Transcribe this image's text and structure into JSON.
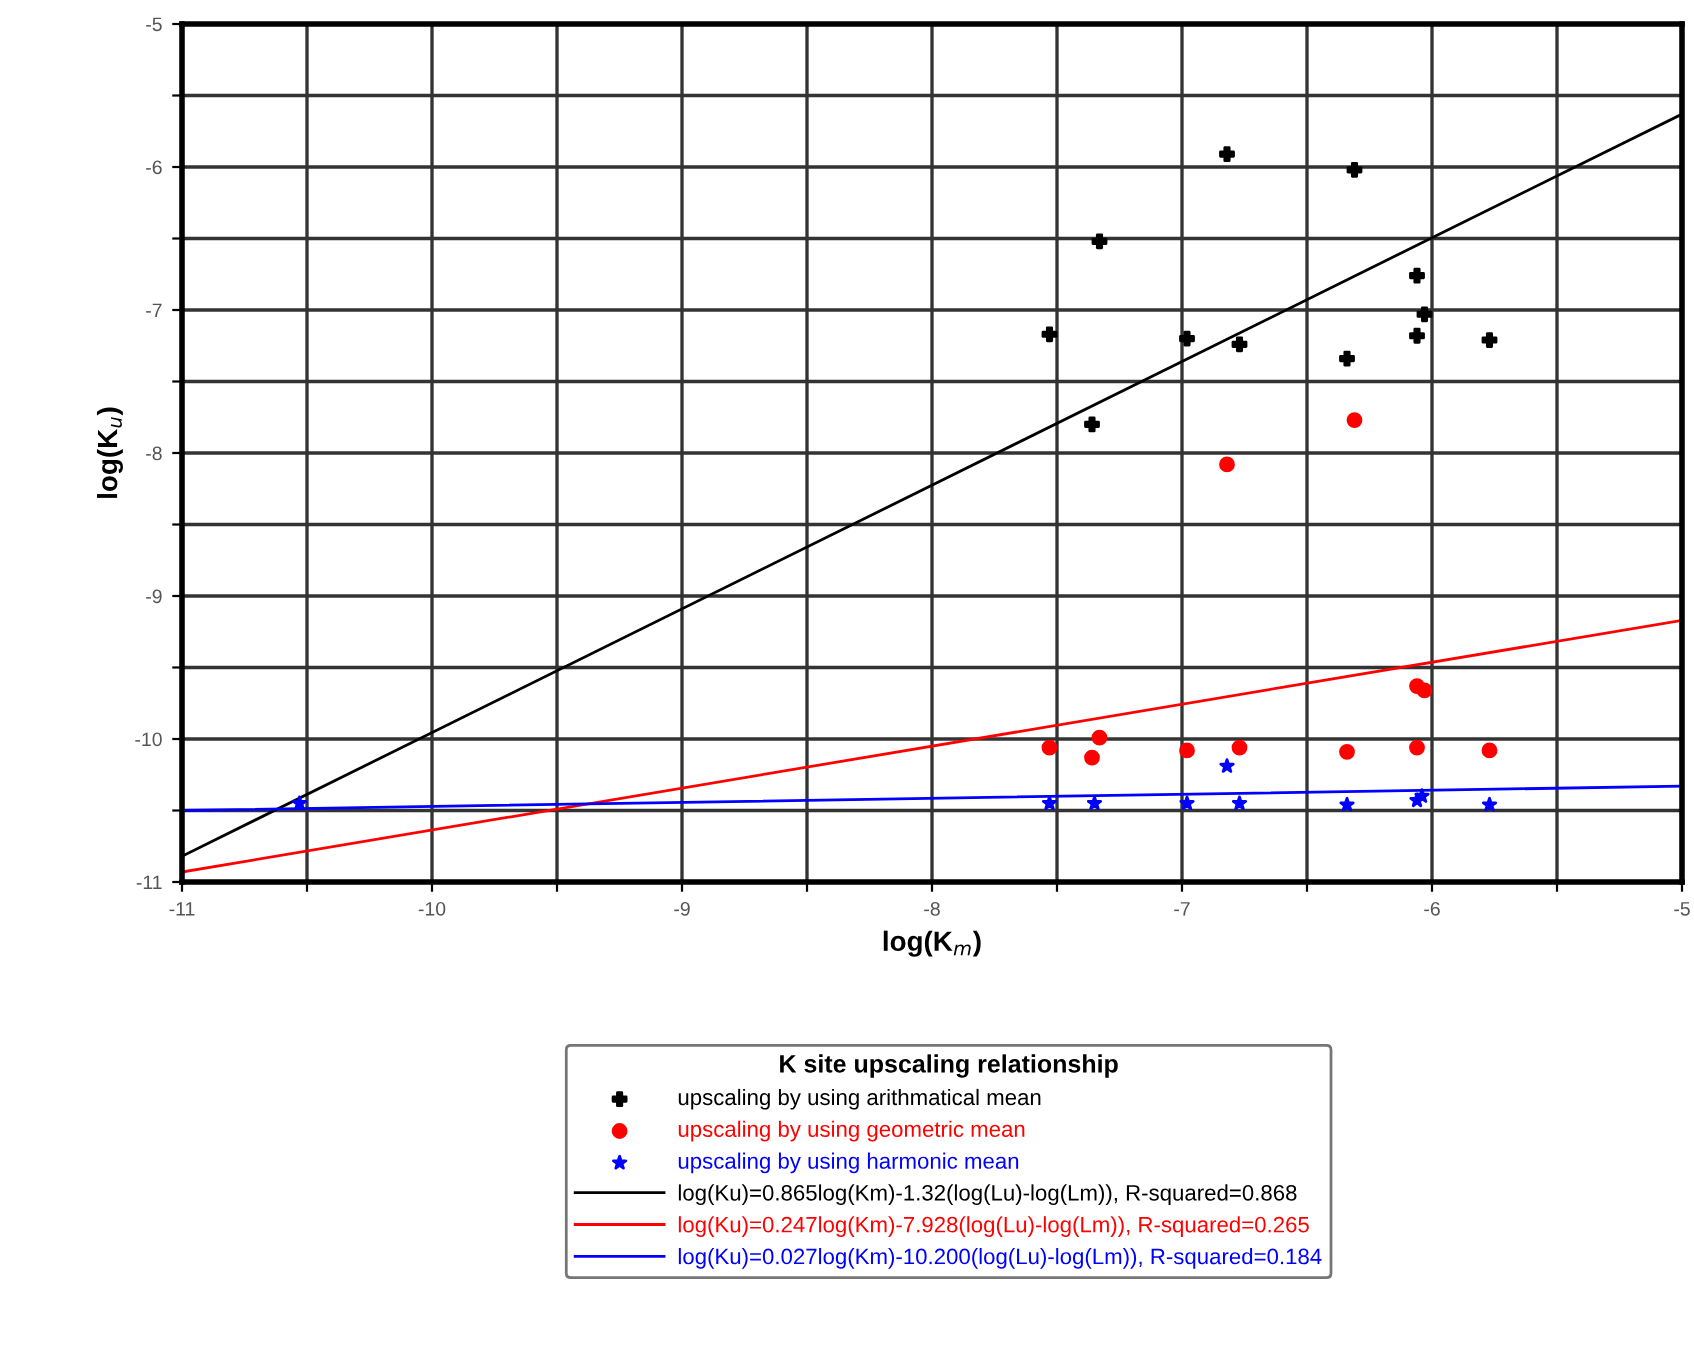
{
  "chart_data": {
    "type": "scatter",
    "xlabel": "log(K$_{m}$)",
    "ylabel": "log(K$_{u}$)",
    "legend_title": "K site upscaling relationship",
    "xlim": [
      -11,
      -5
    ],
    "ylim": [
      -11,
      -5
    ],
    "xticks": [
      -11,
      {
        "value": -10.5,
        "label": null
      },
      -10,
      {
        "value": -9.5,
        "label": null
      },
      -9,
      {
        "value": -8.5,
        "label": null
      },
      -8,
      {
        "value": -7.5,
        "label": null
      },
      -7,
      {
        "value": -6.5,
        "label": null
      },
      -6,
      {
        "value": -5.5,
        "label": null
      },
      -5
    ],
    "yticks": [
      -11,
      {
        "value": -10.5,
        "label": null
      },
      -10,
      {
        "value": -9.5,
        "label": null
      },
      -9,
      {
        "value": -8.5,
        "label": null
      },
      -8,
      {
        "value": -7.5,
        "label": null
      },
      -7,
      {
        "value": -6.5,
        "label": null
      },
      -6,
      {
        "value": -5.5,
        "label": null
      },
      -5
    ],
    "grid": true,
    "legend": "bottom",
    "series": [
      {
        "name": "upscaling by using arithmatical mean",
        "color": "#000000",
        "marker": "cross",
        "x": [
          -6.82,
          -6.31,
          -7.33,
          -6.06,
          -6.03,
          -7.53,
          -6.98,
          -6.77,
          -6.06,
          -5.77,
          -6.34,
          -7.36
        ],
        "values": [
          -5.91,
          -6.02,
          -6.52,
          -6.76,
          -7.03,
          -7.17,
          -7.2,
          -7.24,
          -7.18,
          -7.21,
          -7.34,
          -7.8
        ]
      },
      {
        "name": "upscaling by using geometric mean",
        "color": "#ff0000",
        "marker": "circle",
        "x": [
          -7.53,
          -7.36,
          -7.33,
          -6.98,
          -6.77,
          -6.34,
          -6.06,
          -6.06,
          -6.03,
          -5.77,
          -6.31,
          -6.82
        ],
        "values": [
          -10.06,
          -10.13,
          -9.99,
          -10.08,
          -10.06,
          -10.09,
          -10.06,
          -9.63,
          -9.66,
          -10.08,
          -7.77,
          -8.08
        ]
      },
      {
        "name": "upscaling by using harmonic mean",
        "color": "#0000ff",
        "marker": "star",
        "x": [
          -10.53,
          -7.53,
          -7.35,
          -6.98,
          -6.77,
          -6.82,
          -6.34,
          -6.06,
          -6.04,
          -5.77
        ],
        "values": [
          -10.45,
          -10.45,
          -10.45,
          -10.45,
          -10.45,
          -10.19,
          -10.46,
          -10.43,
          -10.4,
          -10.46
        ]
      },
      {
        "name": "log(Ku)=0.865log(Km)-1.32(log(Lu)-log(Lm)), R-squared=0.868",
        "type": "line",
        "color": "#000000",
        "marker": "none",
        "x": [
          -11,
          -5
        ],
        "values": [
          -10.82,
          -5.63
        ]
      },
      {
        "name": "log(Ku)=0.247log(Km)-7.928(log(Lu)-log(Lm)), R-squared=0.265",
        "type": "line",
        "color": "#ff0000",
        "marker": "none",
        "x": [
          -11,
          -5
        ],
        "values": [
          -10.93,
          -9.17
        ]
      },
      {
        "name": "log(Ku)=0.027log(Km)-10.200(log(Lu)-log(Lm)), R-squared=0.184",
        "type": "line",
        "color": "#0000ff",
        "marker": "none",
        "x": [
          -11,
          -5
        ],
        "values": [
          -10.5,
          -10.33
        ]
      }
    ]
  }
}
